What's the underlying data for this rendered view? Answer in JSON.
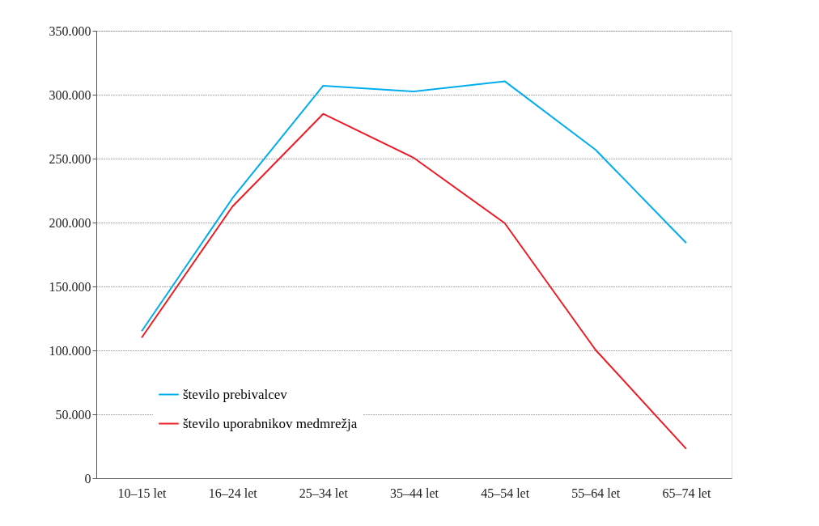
{
  "chart_data": {
    "type": "line",
    "categories": [
      "10–15 let",
      "16–24 let",
      "25–34 let",
      "35–44 let",
      "45–54 let",
      "55–64 let",
      "65–74 let"
    ],
    "series": [
      {
        "name": "število prebivalcev",
        "color": "#00aeef",
        "values": [
          115000,
          219000,
          307000,
          302500,
          310500,
          257000,
          184000
        ]
      },
      {
        "name": "število uporabnikov medmrežja",
        "color": "#ed1c24",
        "values": [
          110000,
          212500,
          285000,
          250500,
          199500,
          100500,
          23000
        ]
      }
    ],
    "ylim": [
      0,
      350000
    ],
    "yticks": [
      0,
      {
        "value": 50000,
        "label": "50.000"
      },
      {
        "value": 100000,
        "label": "100.000"
      },
      {
        "value": 150000,
        "label": "150.000"
      },
      {
        "value": 200000,
        "label": "200.000"
      },
      {
        "value": 250000,
        "label": "250.000"
      },
      {
        "value": 300000,
        "label": "300.000"
      },
      {
        "value": 350000,
        "label": "350.000"
      }
    ],
    "grid": "y",
    "legend": "bottom left",
    "marker": "none",
    "line_style": "solid"
  }
}
